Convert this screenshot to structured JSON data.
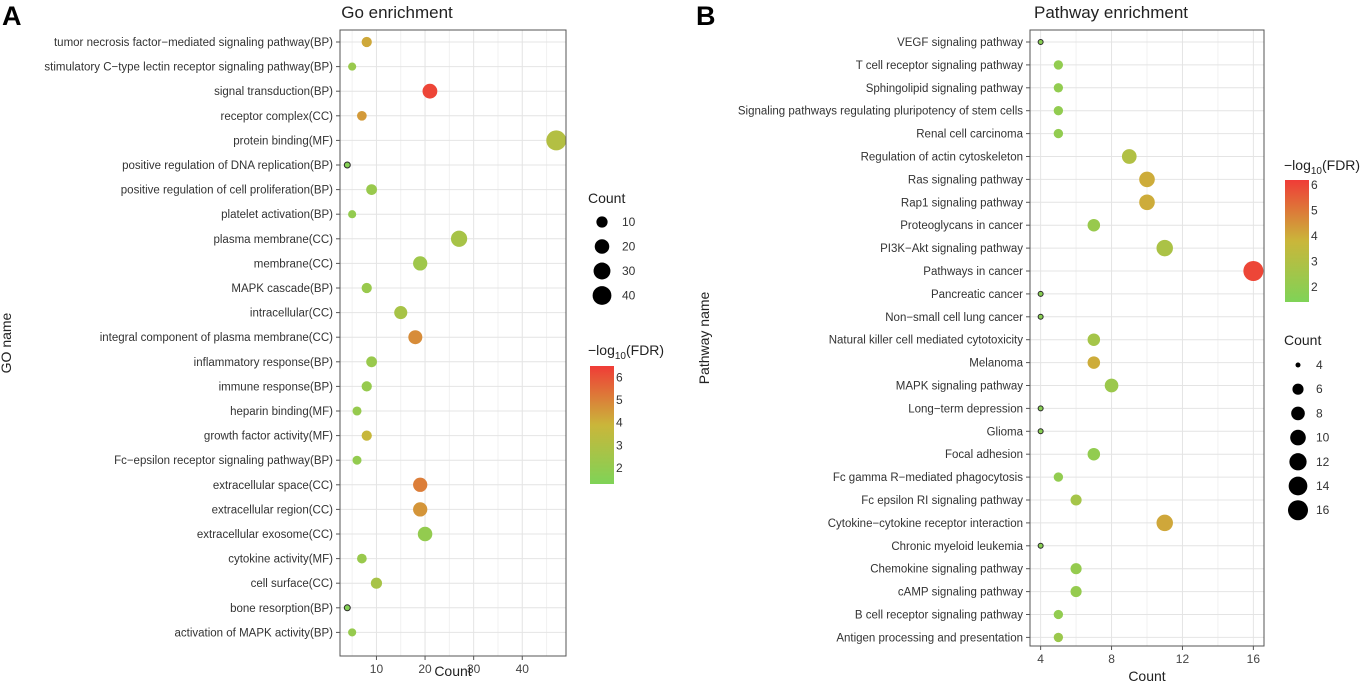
{
  "panels": [
    {
      "letter": "A",
      "title": "Go enrichment",
      "xlabel": "Count",
      "ylabel": "GO name",
      "type": "scatter",
      "xlim": [
        2.5,
        49
      ],
      "xticks": [
        10,
        20,
        30,
        40
      ],
      "size_legend": {
        "title": "Count",
        "values": [
          10,
          20,
          30,
          40
        ],
        "range": [
          4,
          47
        ]
      },
      "color_legend": {
        "title_prefix": "−log",
        "title_sub": "10",
        "title_suffix": "(FDR)",
        "ticks": [
          2,
          3,
          4,
          5,
          6
        ],
        "range": [
          1.3,
          6.5
        ]
      },
      "categories": [
        "tumor necrosis factor−mediated signaling pathway(BP)",
        "stimulatory C−type lectin receptor signaling pathway(BP)",
        "signal transduction(BP)",
        "receptor complex(CC)",
        "protein binding(MF)",
        "positive regulation of DNA replication(BP)",
        "positive regulation of cell proliferation(BP)",
        "platelet activation(BP)",
        "plasma membrane(CC)",
        "membrane(CC)",
        "MAPK cascade(BP)",
        "intracellular(CC)",
        "integral component of plasma membrane(CC)",
        "inflammatory response(BP)",
        "immune response(BP)",
        "heparin binding(MF)",
        "growth factor activity(MF)",
        "Fc−epsilon receptor signaling pathway(BP)",
        "extracellular space(CC)",
        "extracellular region(CC)",
        "extracellular exosome(CC)",
        "cytokine activity(MF)",
        "cell surface(CC)",
        "bone resorption(BP)",
        "activation of MAPK activity(BP)"
      ],
      "counts": [
        8,
        5,
        21,
        7,
        47,
        4,
        9,
        5,
        27,
        19,
        8,
        15,
        18,
        9,
        8,
        6,
        8,
        6,
        19,
        19,
        20,
        7,
        10,
        4,
        5
      ],
      "neg_log10_fdr": [
        4.2,
        2.2,
        6.3,
        4.5,
        3.1,
        1.5,
        2.2,
        2.0,
        2.7,
        2.4,
        2.2,
        2.7,
        4.8,
        2.2,
        2.1,
        2.1,
        3.8,
        2.0,
        5.1,
        4.6,
        2.0,
        2.2,
        2.7,
        1.5,
        2.1
      ]
    },
    {
      "letter": "B",
      "title": "Pathway enrichment",
      "xlabel": "Count",
      "ylabel": "Pathway name",
      "type": "scatter",
      "xlim": [
        3.4,
        16.6
      ],
      "xticks": [
        4,
        8,
        12,
        16
      ],
      "size_legend": {
        "title": "Count",
        "values": [
          4,
          6,
          8,
          10,
          12,
          14,
          16
        ],
        "range": [
          4,
          16
        ]
      },
      "color_legend": {
        "title_prefix": "−log",
        "title_sub": "10",
        "title_suffix": "(FDR)",
        "ticks": [
          2,
          3,
          4,
          5,
          6
        ],
        "range": [
          1.4,
          6.2
        ]
      },
      "categories": [
        "VEGF signaling pathway",
        "T cell receptor signaling pathway",
        "Sphingolipid signaling pathway",
        "Signaling pathways regulating pluripotency of stem cells",
        "Renal cell carcinoma",
        "Regulation of actin cytoskeleton",
        "Ras signaling pathway",
        "Rap1 signaling pathway",
        "Proteoglycans in cancer",
        "PI3K−Akt signaling pathway",
        "Pathways in cancer",
        "Pancreatic cancer",
        "Non−small cell lung cancer",
        "Natural killer cell mediated cytotoxicity",
        "Melanoma",
        "MAPK signaling pathway",
        "Long−term depression",
        "Glioma",
        "Focal adhesion",
        "Fc gamma R−mediated phagocytosis",
        "Fc epsilon RI signaling pathway",
        "Cytokine−cytokine receptor interaction",
        "Chronic myeloid leukemia",
        "Chemokine signaling pathway",
        "cAMP signaling pathway",
        "B cell receptor signaling pathway",
        "Antigen processing and presentation"
      ],
      "counts": [
        4,
        5,
        5,
        5,
        5,
        9,
        10,
        10,
        7,
        11,
        16,
        4,
        4,
        7,
        7,
        8,
        4,
        4,
        7,
        5,
        6,
        11,
        4,
        6,
        6,
        5,
        5
      ],
      "neg_log10_fdr": [
        1.7,
        2.0,
        2.0,
        2.0,
        2.0,
        3.0,
        4.0,
        4.0,
        2.2,
        2.8,
        6.0,
        1.7,
        1.7,
        2.6,
        4.0,
        2.3,
        1.7,
        1.7,
        2.0,
        2.0,
        2.6,
        4.1,
        1.7,
        2.1,
        2.1,
        2.0,
        2.3
      ]
    }
  ],
  "colors": {
    "low": "#7fd357",
    "mid": "#cab63a",
    "high": "#f03c37",
    "point_stroke": "#2a2a2a",
    "panel_bg": "#ffffff",
    "grid": "#e4e4e4"
  }
}
